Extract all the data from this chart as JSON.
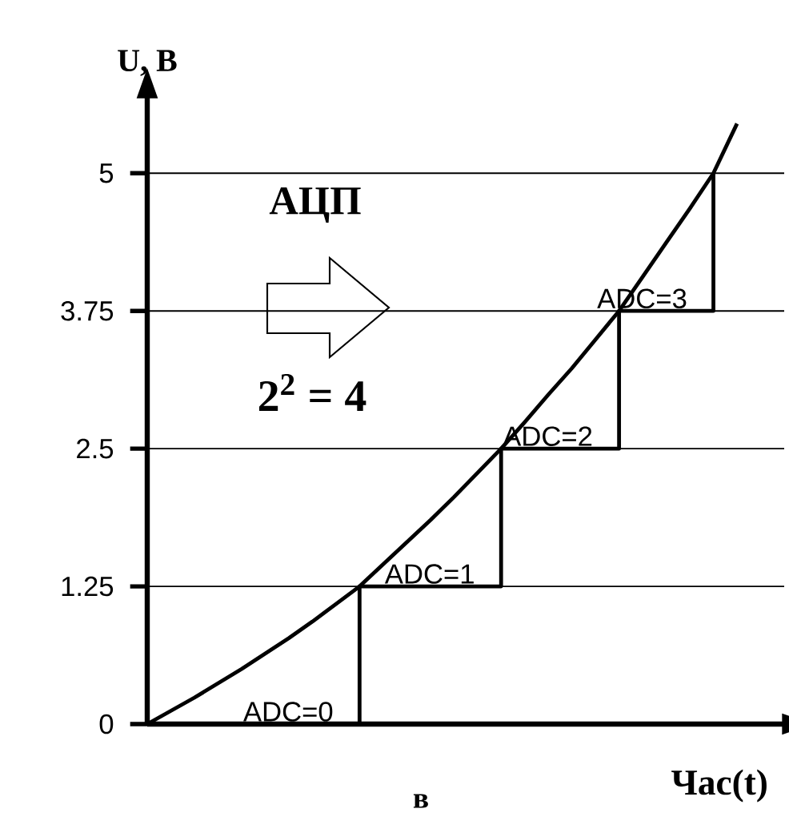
{
  "chart_data": {
    "type": "line",
    "xlabel": "Час(t)",
    "ylabel": "U, В",
    "categories": [
      null,
      null,
      null,
      null,
      null,
      null,
      null,
      null,
      null,
      null,
      null,
      null,
      null,
      null,
      null,
      null,
      null,
      null,
      null,
      null,
      null,
      null,
      null,
      null,
      null,
      null,
      null,
      null
    ],
    "ylim": [
      0,
      5.7
    ],
    "yticks": [
      0,
      1.25,
      2.5,
      3.75,
      5
    ],
    "tick_labels": "y",
    "marker": "none",
    "line_style": "solid",
    "series": [
      {
        "type": "line",
        "color": "#000000",
        "values": [
          0,
          0.12,
          0.24,
          0.37,
          0.5,
          0.64,
          0.78,
          0.93,
          1.09,
          1.25,
          1.45,
          1.65,
          1.85,
          2.06,
          2.28,
          2.5,
          2.74,
          2.99,
          3.23,
          3.49,
          3.75,
          4.06,
          4.37,
          4.68,
          5,
          5.45,
          null,
          null
        ]
      },
      {
        "type": "step",
        "color": "#000000",
        "values": [
          0,
          0,
          0,
          0,
          0,
          0,
          0,
          0,
          0,
          1.25,
          1.25,
          1.25,
          1.25,
          1.25,
          1.25,
          2.5,
          2.5,
          2.5,
          2.5,
          2.5,
          3.75,
          3.75,
          3.75,
          3.75,
          5,
          null,
          null,
          null
        ]
      }
    ],
    "ref_lines": [
      {
        "axis": "y",
        "value": 1.25,
        "color": "#000000"
      },
      {
        "axis": "y",
        "value": 2.5,
        "color": "#000000"
      },
      {
        "axis": "y",
        "value": 3.75,
        "color": "#000000"
      },
      {
        "axis": "y",
        "value": 5,
        "color": "#000000"
      }
    ],
    "annotations": [
      "АЦП",
      "2$^{2}$ = 4",
      {
        "text": "ADC=0",
        "y": 0
      },
      {
        "text": "ADC=1",
        "y": 1.25
      },
      {
        "text": "ADC=2",
        "y": 2.5
      },
      {
        "text": "ADC=3",
        "y": 3.75
      },
      "в"
    ]
  }
}
